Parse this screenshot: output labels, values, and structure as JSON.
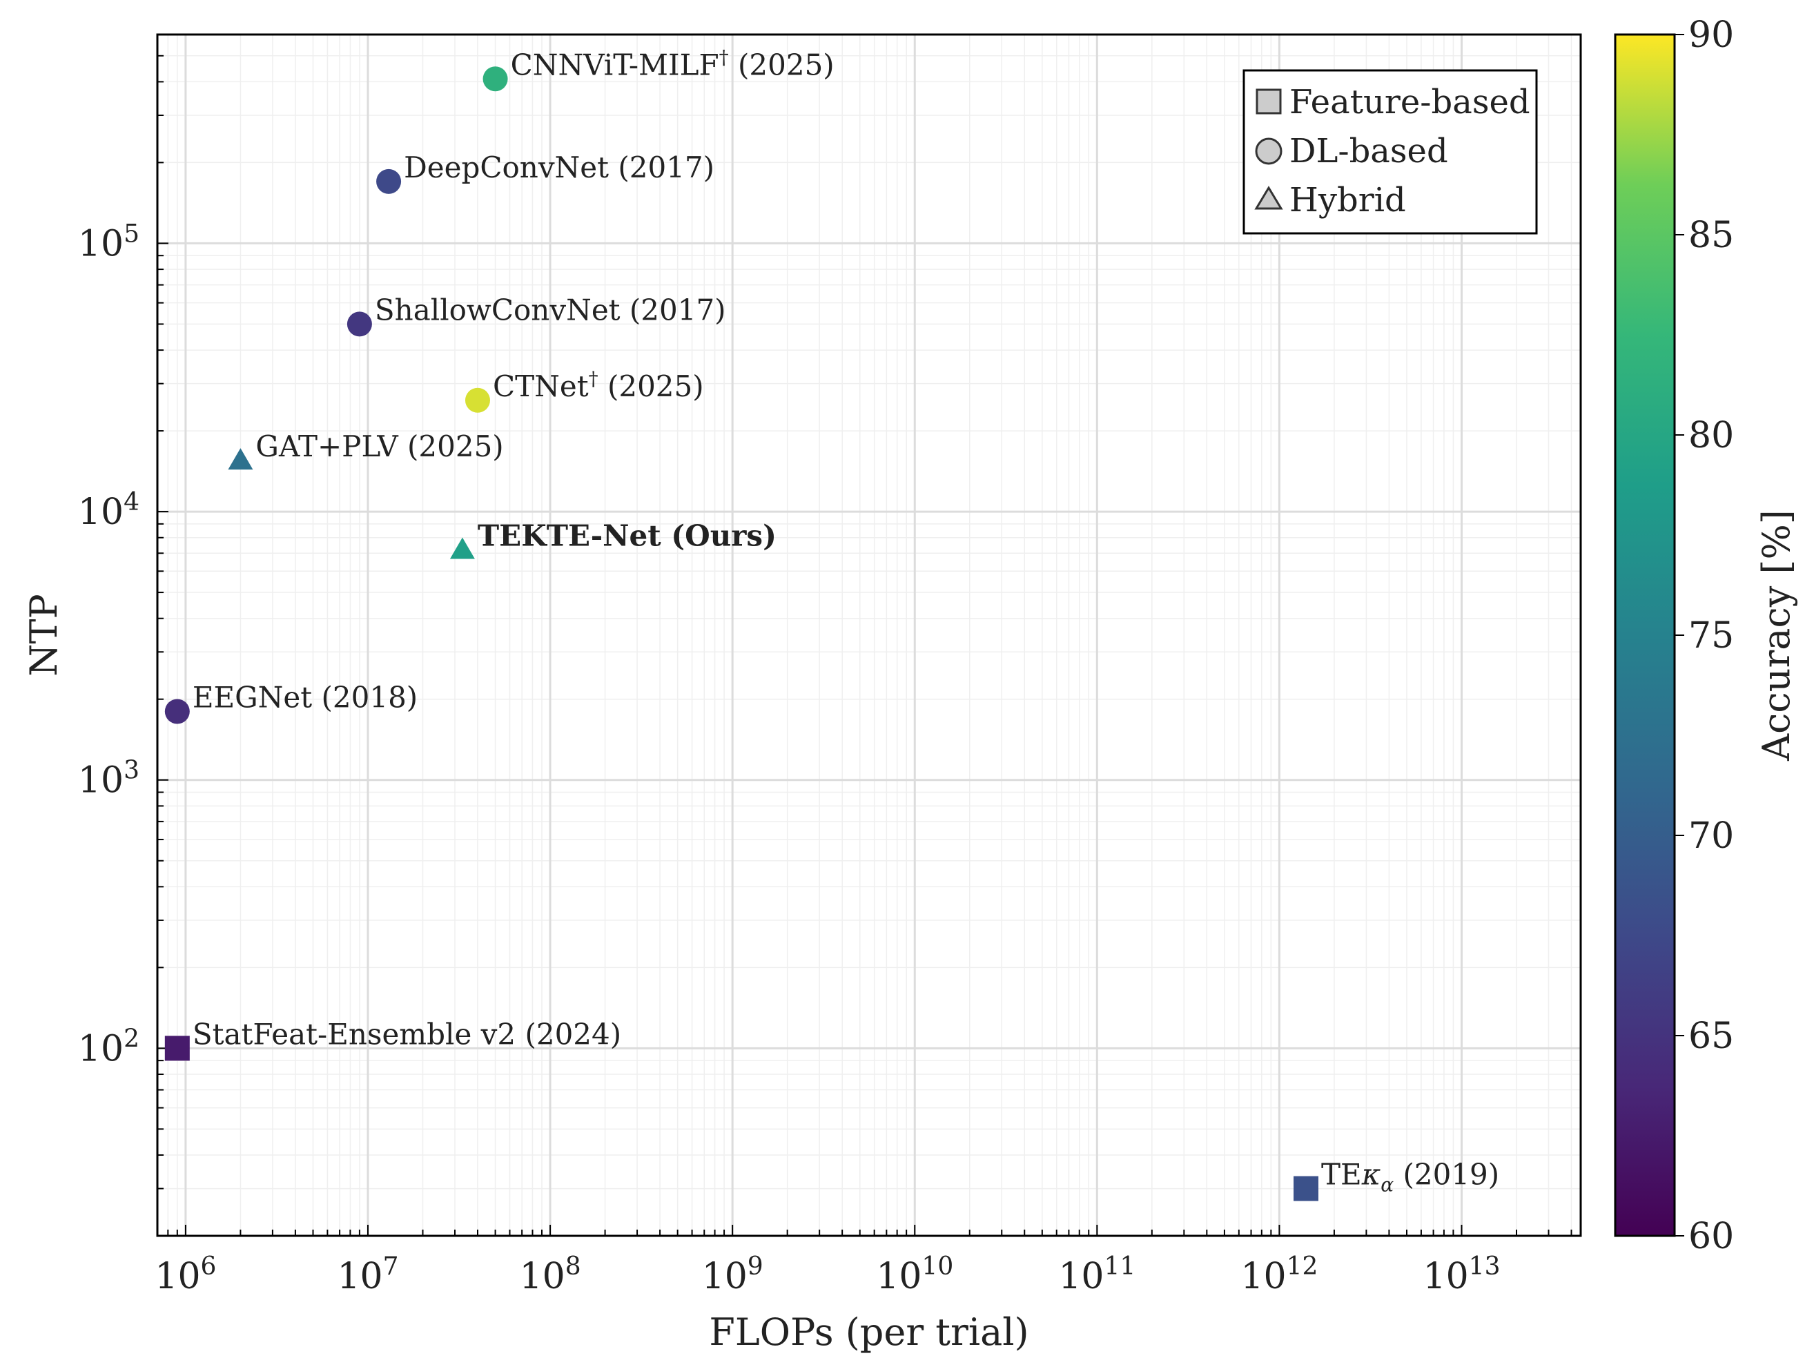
{
  "chart_data": {
    "type": "scatter",
    "x_scale": "log",
    "y_scale": "log",
    "xlabel": "FLOPs (per trial)",
    "ylabel": "NTP",
    "xlim": [
      700000,
      45000000000000
    ],
    "ylim": [
      20,
      600000
    ],
    "x_ticks": [
      {
        "value": 1000000,
        "base": "10",
        "exp": "6"
      },
      {
        "value": 10000000,
        "base": "10",
        "exp": "7"
      },
      {
        "value": 100000000,
        "base": "10",
        "exp": "8"
      },
      {
        "value": 1000000000,
        "base": "10",
        "exp": "9"
      },
      {
        "value": 10000000000,
        "base": "10",
        "exp": "10"
      },
      {
        "value": 100000000000,
        "base": "10",
        "exp": "11"
      },
      {
        "value": 1000000000000,
        "base": "10",
        "exp": "12"
      },
      {
        "value": 10000000000000,
        "base": "10",
        "exp": "13"
      }
    ],
    "y_ticks": [
      {
        "value": 100,
        "base": "10",
        "exp": "2"
      },
      {
        "value": 1000,
        "base": "10",
        "exp": "3"
      },
      {
        "value": 10000,
        "base": "10",
        "exp": "4"
      },
      {
        "value": 100000,
        "base": "10",
        "exp": "5"
      }
    ],
    "colorbar": {
      "label": "Accuracy [%]",
      "min": 60,
      "max": 90,
      "ticks": [
        "60",
        "65",
        "70",
        "75",
        "80",
        "85",
        "90"
      ],
      "colormap": "viridis"
    },
    "legend": {
      "position": "top-right",
      "entries": [
        {
          "marker": "square",
          "label": "Feature-based"
        },
        {
          "marker": "circle",
          "label": "DL-based"
        },
        {
          "marker": "triangle",
          "label": "Hybrid"
        }
      ]
    },
    "points": [
      {
        "name": "CNNViT-MILF",
        "sup": "†",
        "suffix": " (2025)",
        "flops": 50000000,
        "ntp": 410000,
        "accuracy": 81.5,
        "category": "DL-based",
        "marker": "circle",
        "bold": false
      },
      {
        "name": "DeepConvNet (2017)",
        "sup": "",
        "suffix": "",
        "flops": 13000000,
        "ntp": 170000,
        "accuracy": 67.5,
        "category": "DL-based",
        "marker": "circle",
        "bold": false
      },
      {
        "name": "ShallowConvNet (2017)",
        "sup": "",
        "suffix": "",
        "flops": 9000000,
        "ntp": 50000,
        "accuracy": 65.5,
        "category": "DL-based",
        "marker": "circle",
        "bold": false
      },
      {
        "name": "CTNet",
        "sup": "†",
        "suffix": " (2025)",
        "flops": 40000000,
        "ntp": 26000,
        "accuracy": 89.0,
        "category": "DL-based",
        "marker": "circle",
        "bold": false
      },
      {
        "name": "GAT+PLV (2025)",
        "sup": "",
        "suffix": "",
        "flops": 2000000,
        "ntp": 15500,
        "accuracy": 72.5,
        "category": "Hybrid",
        "marker": "triangle",
        "bold": false
      },
      {
        "name": "TEKTE-Net (Ours)",
        "sup": "",
        "suffix": "",
        "flops": 33000000,
        "ntp": 7200,
        "accuracy": 79.0,
        "category": "Hybrid",
        "marker": "triangle",
        "bold": true
      },
      {
        "name": "EEGNet (2018)",
        "sup": "",
        "suffix": "",
        "flops": 900000,
        "ntp": 1800,
        "accuracy": 64.5,
        "category": "DL-based",
        "marker": "circle",
        "bold": false
      },
      {
        "name": "StatFeat-Ensemble v2 (2024)",
        "sup": "",
        "suffix": "",
        "flops": 900000,
        "ntp": 100,
        "accuracy": 62.5,
        "category": "Feature-based",
        "marker": "square",
        "bold": false
      },
      {
        "name": "TE",
        "kappa": "κ",
        "alpha": "α",
        "suffix": " (2019)",
        "flops": 1400000000000,
        "ntp": 30,
        "accuracy": 68.5,
        "category": "Feature-based",
        "marker": "square",
        "bold": false
      }
    ]
  }
}
